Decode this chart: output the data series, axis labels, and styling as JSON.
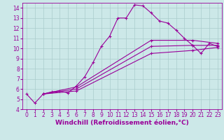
{
  "xlabel": "Windchill (Refroidissement éolien,°C)",
  "bg_color": "#cce8e8",
  "grid_color": "#aacccc",
  "line_color": "#990099",
  "xlim": [
    -0.5,
    23.5
  ],
  "ylim": [
    4,
    14.5
  ],
  "xticks": [
    0,
    1,
    2,
    3,
    4,
    5,
    6,
    7,
    8,
    9,
    10,
    11,
    12,
    13,
    14,
    15,
    16,
    17,
    18,
    19,
    20,
    21,
    22,
    23
  ],
  "yticks": [
    4,
    5,
    6,
    7,
    8,
    9,
    10,
    11,
    12,
    13,
    14
  ],
  "series": [
    {
      "x": [
        0,
        1,
        2,
        3,
        4,
        5,
        6,
        7,
        8,
        9,
        10,
        11,
        12,
        13,
        14,
        15,
        16,
        17,
        18,
        19,
        20,
        21,
        22,
        23
      ],
      "y": [
        5.5,
        4.6,
        5.5,
        5.7,
        5.8,
        5.6,
        6.3,
        7.2,
        8.6,
        10.2,
        11.2,
        13.0,
        13.0,
        14.3,
        14.2,
        13.5,
        12.7,
        12.5,
        11.8,
        11.0,
        10.3,
        9.5,
        10.5,
        10.2
      ]
    },
    {
      "x": [
        2,
        6,
        15,
        20,
        23
      ],
      "y": [
        5.5,
        6.2,
        10.8,
        10.8,
        10.5
      ]
    },
    {
      "x": [
        2,
        6,
        15,
        20,
        23
      ],
      "y": [
        5.5,
        6.0,
        10.2,
        10.3,
        10.3
      ]
    },
    {
      "x": [
        2,
        6,
        15,
        20,
        23
      ],
      "y": [
        5.5,
        5.8,
        9.5,
        9.8,
        10.1
      ]
    }
  ],
  "xlabel_fontsize": 6.5,
  "tick_fontsize": 5.5,
  "linewidth": 0.8,
  "markersize": 3.5
}
